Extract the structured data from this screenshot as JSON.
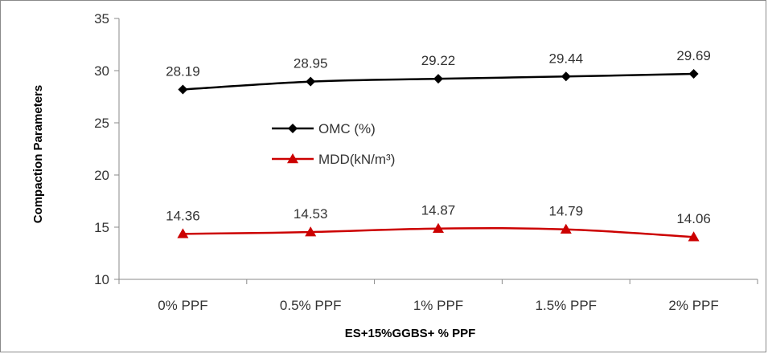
{
  "chart_data": {
    "type": "line",
    "title": "",
    "xlabel": "ES+15%GGBS+ % PPF",
    "ylabel": "Compaction Parameters",
    "categories": [
      "0% PPF",
      "0.5% PPF",
      "1% PPF",
      "1.5% PPF",
      "2% PPF"
    ],
    "ylim": [
      10,
      35
    ],
    "yticks": [
      10,
      15,
      20,
      25,
      30,
      35
    ],
    "grid": false,
    "legend_position": "center-left",
    "series": [
      {
        "name": "OMC (%)",
        "values": [
          28.19,
          28.95,
          29.22,
          29.44,
          29.69
        ],
        "labels": [
          "28.19",
          "28.95",
          "29.22",
          "29.44",
          "29.69"
        ],
        "color": "#000000",
        "marker": "diamond"
      },
      {
        "name": "MDD(kN/m³)",
        "values": [
          14.36,
          14.53,
          14.87,
          14.79,
          14.06
        ],
        "labels": [
          "14.36",
          "14.53",
          "14.87",
          "14.79",
          "14.06"
        ],
        "color": "#cc0000",
        "marker": "triangle"
      }
    ]
  }
}
